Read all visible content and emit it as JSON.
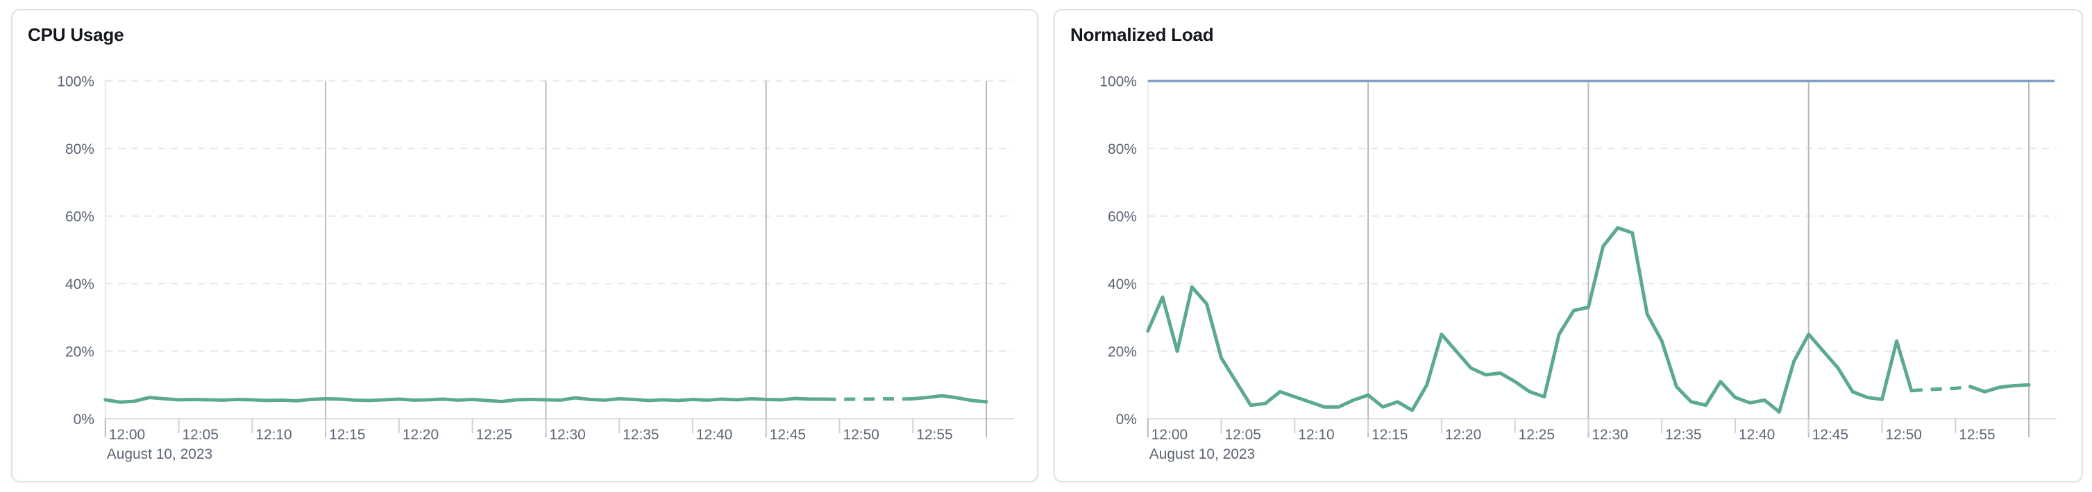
{
  "colors": {
    "series_green": "#5ba98e",
    "limit_blue": "#7d9dc7",
    "grid_dashed": "#e3e6ec",
    "grid_solid": "#b5b8bf",
    "axis_line": "#d9dce2",
    "tick_text": "#5b6472",
    "title_text": "#14171d",
    "card_border": "#dde2ea"
  },
  "chart_data": [
    {
      "type": "line",
      "title": "CPU Usage",
      "date_label": "August 10, 2023",
      "ylim": [
        0,
        100
      ],
      "ylabel": "",
      "xlabel": "",
      "grid": true,
      "legend": "none",
      "y_ticks": [
        {
          "v": 0,
          "label": "0%"
        },
        {
          "v": 20,
          "label": "20%"
        },
        {
          "v": 40,
          "label": "40%"
        },
        {
          "v": 60,
          "label": "60%"
        },
        {
          "v": 80,
          "label": "80%"
        },
        {
          "v": 100,
          "label": "100%"
        }
      ],
      "x_tick_labels": [
        {
          "min": 0,
          "label": "12:00"
        },
        {
          "min": 5,
          "label": "12:05"
        },
        {
          "min": 10,
          "label": "12:10"
        },
        {
          "min": 15,
          "label": "12:15"
        },
        {
          "min": 20,
          "label": "12:20"
        },
        {
          "min": 25,
          "label": "12:25"
        },
        {
          "min": 30,
          "label": "12:30"
        },
        {
          "min": 35,
          "label": "12:35"
        },
        {
          "min": 40,
          "label": "12:40"
        },
        {
          "min": 45,
          "label": "12:45"
        },
        {
          "min": 50,
          "label": "12:50"
        },
        {
          "min": 55,
          "label": "12:55"
        }
      ],
      "x_gridlines_min": [
        15,
        30,
        45,
        60
      ],
      "series": [
        {
          "name": "cpu-usage-percent",
          "color": "#5ba98e",
          "dash_from_min": 49,
          "dash_to_min": 55,
          "values": [
            5.6,
            4.9,
            5.2,
            6.3,
            5.9,
            5.6,
            5.7,
            5.6,
            5.5,
            5.7,
            5.6,
            5.4,
            5.5,
            5.3,
            5.7,
            5.9,
            5.8,
            5.5,
            5.4,
            5.6,
            5.8,
            5.5,
            5.6,
            5.8,
            5.5,
            5.7,
            5.4,
            5.1,
            5.6,
            5.7,
            5.6,
            5.5,
            6.2,
            5.7,
            5.5,
            5.9,
            5.7,
            5.4,
            5.6,
            5.4,
            5.7,
            5.5,
            5.8,
            5.6,
            5.9,
            5.7,
            5.6,
            6.0,
            5.8,
            5.8,
            5.7,
            5.8,
            5.8,
            5.9,
            5.8,
            5.9,
            6.3,
            6.8,
            6.2,
            5.4,
            5.0
          ]
        }
      ],
      "limit_lines": []
    },
    {
      "type": "line",
      "title": "Normalized Load",
      "date_label": "August 10, 2023",
      "ylim": [
        0,
        100
      ],
      "ylabel": "",
      "xlabel": "",
      "grid": true,
      "legend": "none",
      "y_ticks": [
        {
          "v": 0,
          "label": "0%"
        },
        {
          "v": 20,
          "label": "20%"
        },
        {
          "v": 40,
          "label": "40%"
        },
        {
          "v": 60,
          "label": "60%"
        },
        {
          "v": 80,
          "label": "80%"
        },
        {
          "v": 100,
          "label": "100%"
        }
      ],
      "x_tick_labels": [
        {
          "min": 0,
          "label": "12:00"
        },
        {
          "min": 5,
          "label": "12:05"
        },
        {
          "min": 10,
          "label": "12:10"
        },
        {
          "min": 15,
          "label": "12:15"
        },
        {
          "min": 20,
          "label": "12:20"
        },
        {
          "min": 25,
          "label": "12:25"
        },
        {
          "min": 30,
          "label": "12:30"
        },
        {
          "min": 35,
          "label": "12:35"
        },
        {
          "min": 40,
          "label": "12:40"
        },
        {
          "min": 45,
          "label": "12:45"
        },
        {
          "min": 50,
          "label": "12:50"
        },
        {
          "min": 55,
          "label": "12:55"
        }
      ],
      "x_gridlines_min": [
        15,
        30,
        45,
        60
      ],
      "series": [
        {
          "name": "normalized-load-percent",
          "color": "#5ba98e",
          "dash_from_min": 52,
          "dash_to_min": 56,
          "values": [
            26,
            36,
            20,
            39,
            34,
            18,
            11,
            4,
            4.5,
            8,
            6.5,
            5,
            3.5,
            3.5,
            5.5,
            7,
            3.5,
            5,
            2.5,
            10,
            25,
            20,
            15,
            13,
            13.5,
            11,
            8,
            6.5,
            25,
            32,
            33,
            51,
            56.5,
            55,
            31,
            23,
            9.5,
            5,
            4,
            11,
            6.3,
            4.7,
            5.5,
            2,
            17,
            25,
            20,
            15,
            8,
            6.3,
            5.7,
            23,
            8.3,
            8.6,
            8.8,
            9,
            9.5,
            8,
            9.3,
            9.8,
            10
          ]
        }
      ],
      "limit_lines": [
        {
          "name": "load-limit-100",
          "value": 100,
          "color": "#7d9dc7"
        }
      ]
    }
  ]
}
